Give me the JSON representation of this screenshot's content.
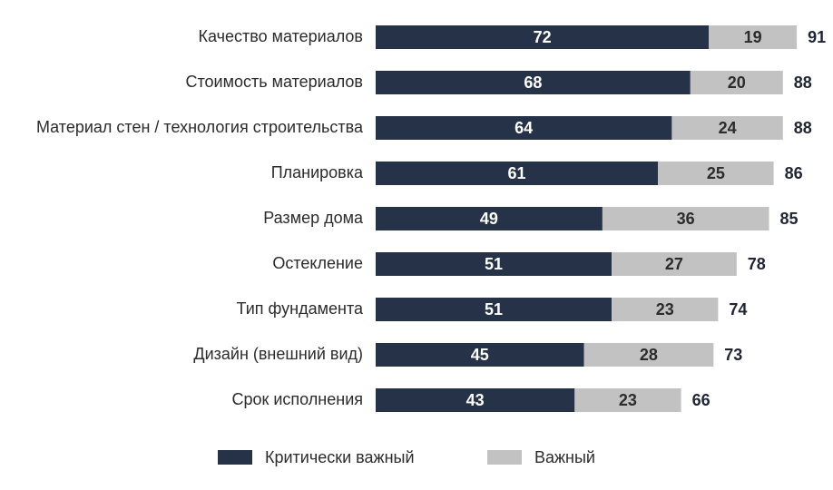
{
  "chart_data": {
    "type": "stacked-bar-horizontal",
    "categories": [
      "Качество материалов",
      "Стоимость материалов",
      "Материал стен / технология строительства",
      "Планировка",
      "Размер дома",
      "Остекление",
      "Тип фундамента",
      "Дизайн (внешний вид)",
      "Срок исполнения"
    ],
    "series": [
      {
        "name": "Критически важный",
        "color": "#253247",
        "label_color": "#ffffff",
        "values": [
          72,
          68,
          64,
          61,
          49,
          51,
          51,
          45,
          43
        ]
      },
      {
        "name": "Важный",
        "color": "#c2c2c2",
        "label_color": "#2b2b2b",
        "values": [
          19,
          20,
          24,
          25,
          36,
          27,
          23,
          28,
          23
        ]
      }
    ],
    "totals": [
      91,
      88,
      88,
      86,
      85,
      78,
      74,
      73,
      66
    ]
  }
}
